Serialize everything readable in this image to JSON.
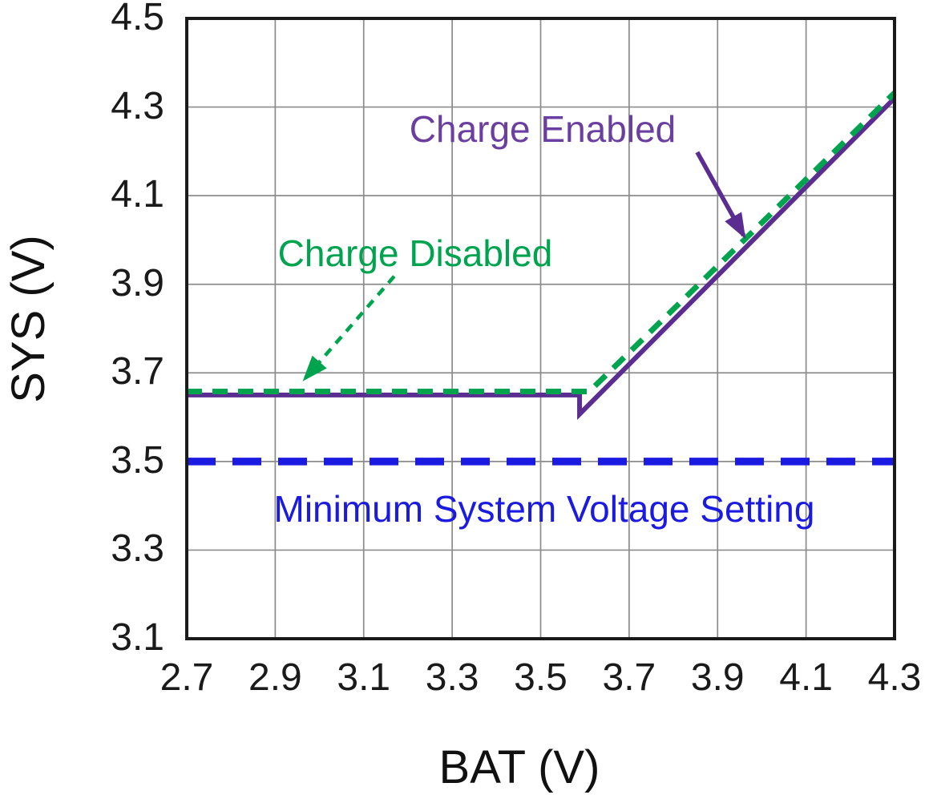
{
  "chart_data": {
    "type": "line",
    "title": "",
    "xlabel": "BAT (V)",
    "ylabel": "SYS (V)",
    "xlim": [
      2.7,
      4.3
    ],
    "ylim": [
      3.1,
      4.5
    ],
    "x_ticks": [
      "2.7",
      "2.9",
      "3.1",
      "3.3",
      "3.5",
      "3.7",
      "3.9",
      "4.1",
      "4.3"
    ],
    "y_ticks": [
      "3.1",
      "3.3",
      "3.5",
      "3.7",
      "3.9",
      "4.1",
      "4.3",
      "4.5"
    ],
    "grid": true,
    "grid_color": "#8c8c8c",
    "axis_color": "#1a1a1a",
    "legend_position": "in-chart annotations with arrows",
    "series": [
      {
        "name": "Charge Enabled",
        "color": "#5b2d90",
        "linestyle": "solid",
        "points": [
          [
            2.7,
            3.65
          ],
          [
            3.588,
            3.65
          ],
          [
            3.588,
            3.607
          ],
          [
            4.3,
            4.32
          ]
        ]
      },
      {
        "name": "Charge Disabled",
        "color": "#00a44f",
        "linestyle": "dashed",
        "points": [
          [
            2.7,
            3.658
          ],
          [
            3.61,
            3.658
          ],
          [
            4.3,
            4.332
          ]
        ]
      },
      {
        "name": "Minimum System Voltage Setting",
        "color": "#1a1ae0",
        "linestyle": "long-dash",
        "points": [
          [
            2.7,
            3.5
          ],
          [
            4.3,
            3.5
          ]
        ]
      }
    ],
    "annotations": [
      {
        "text": "Charge Enabled",
        "color": "#6b3fa0",
        "arrow": {
          "style": "solid",
          "color": "#5b2d90",
          "from": [
            3.854,
            4.198
          ],
          "to": [
            3.959,
            4.01
          ]
        }
      },
      {
        "text": "Charge Disabled",
        "color": "#00a44f",
        "arrow": {
          "style": "dashed",
          "color": "#00a44f",
          "from": [
            3.169,
            3.918
          ],
          "to": [
            2.968,
            3.688
          ]
        }
      },
      {
        "text": "Minimum System Voltage Setting",
        "color": "#1a1ae0"
      }
    ]
  }
}
